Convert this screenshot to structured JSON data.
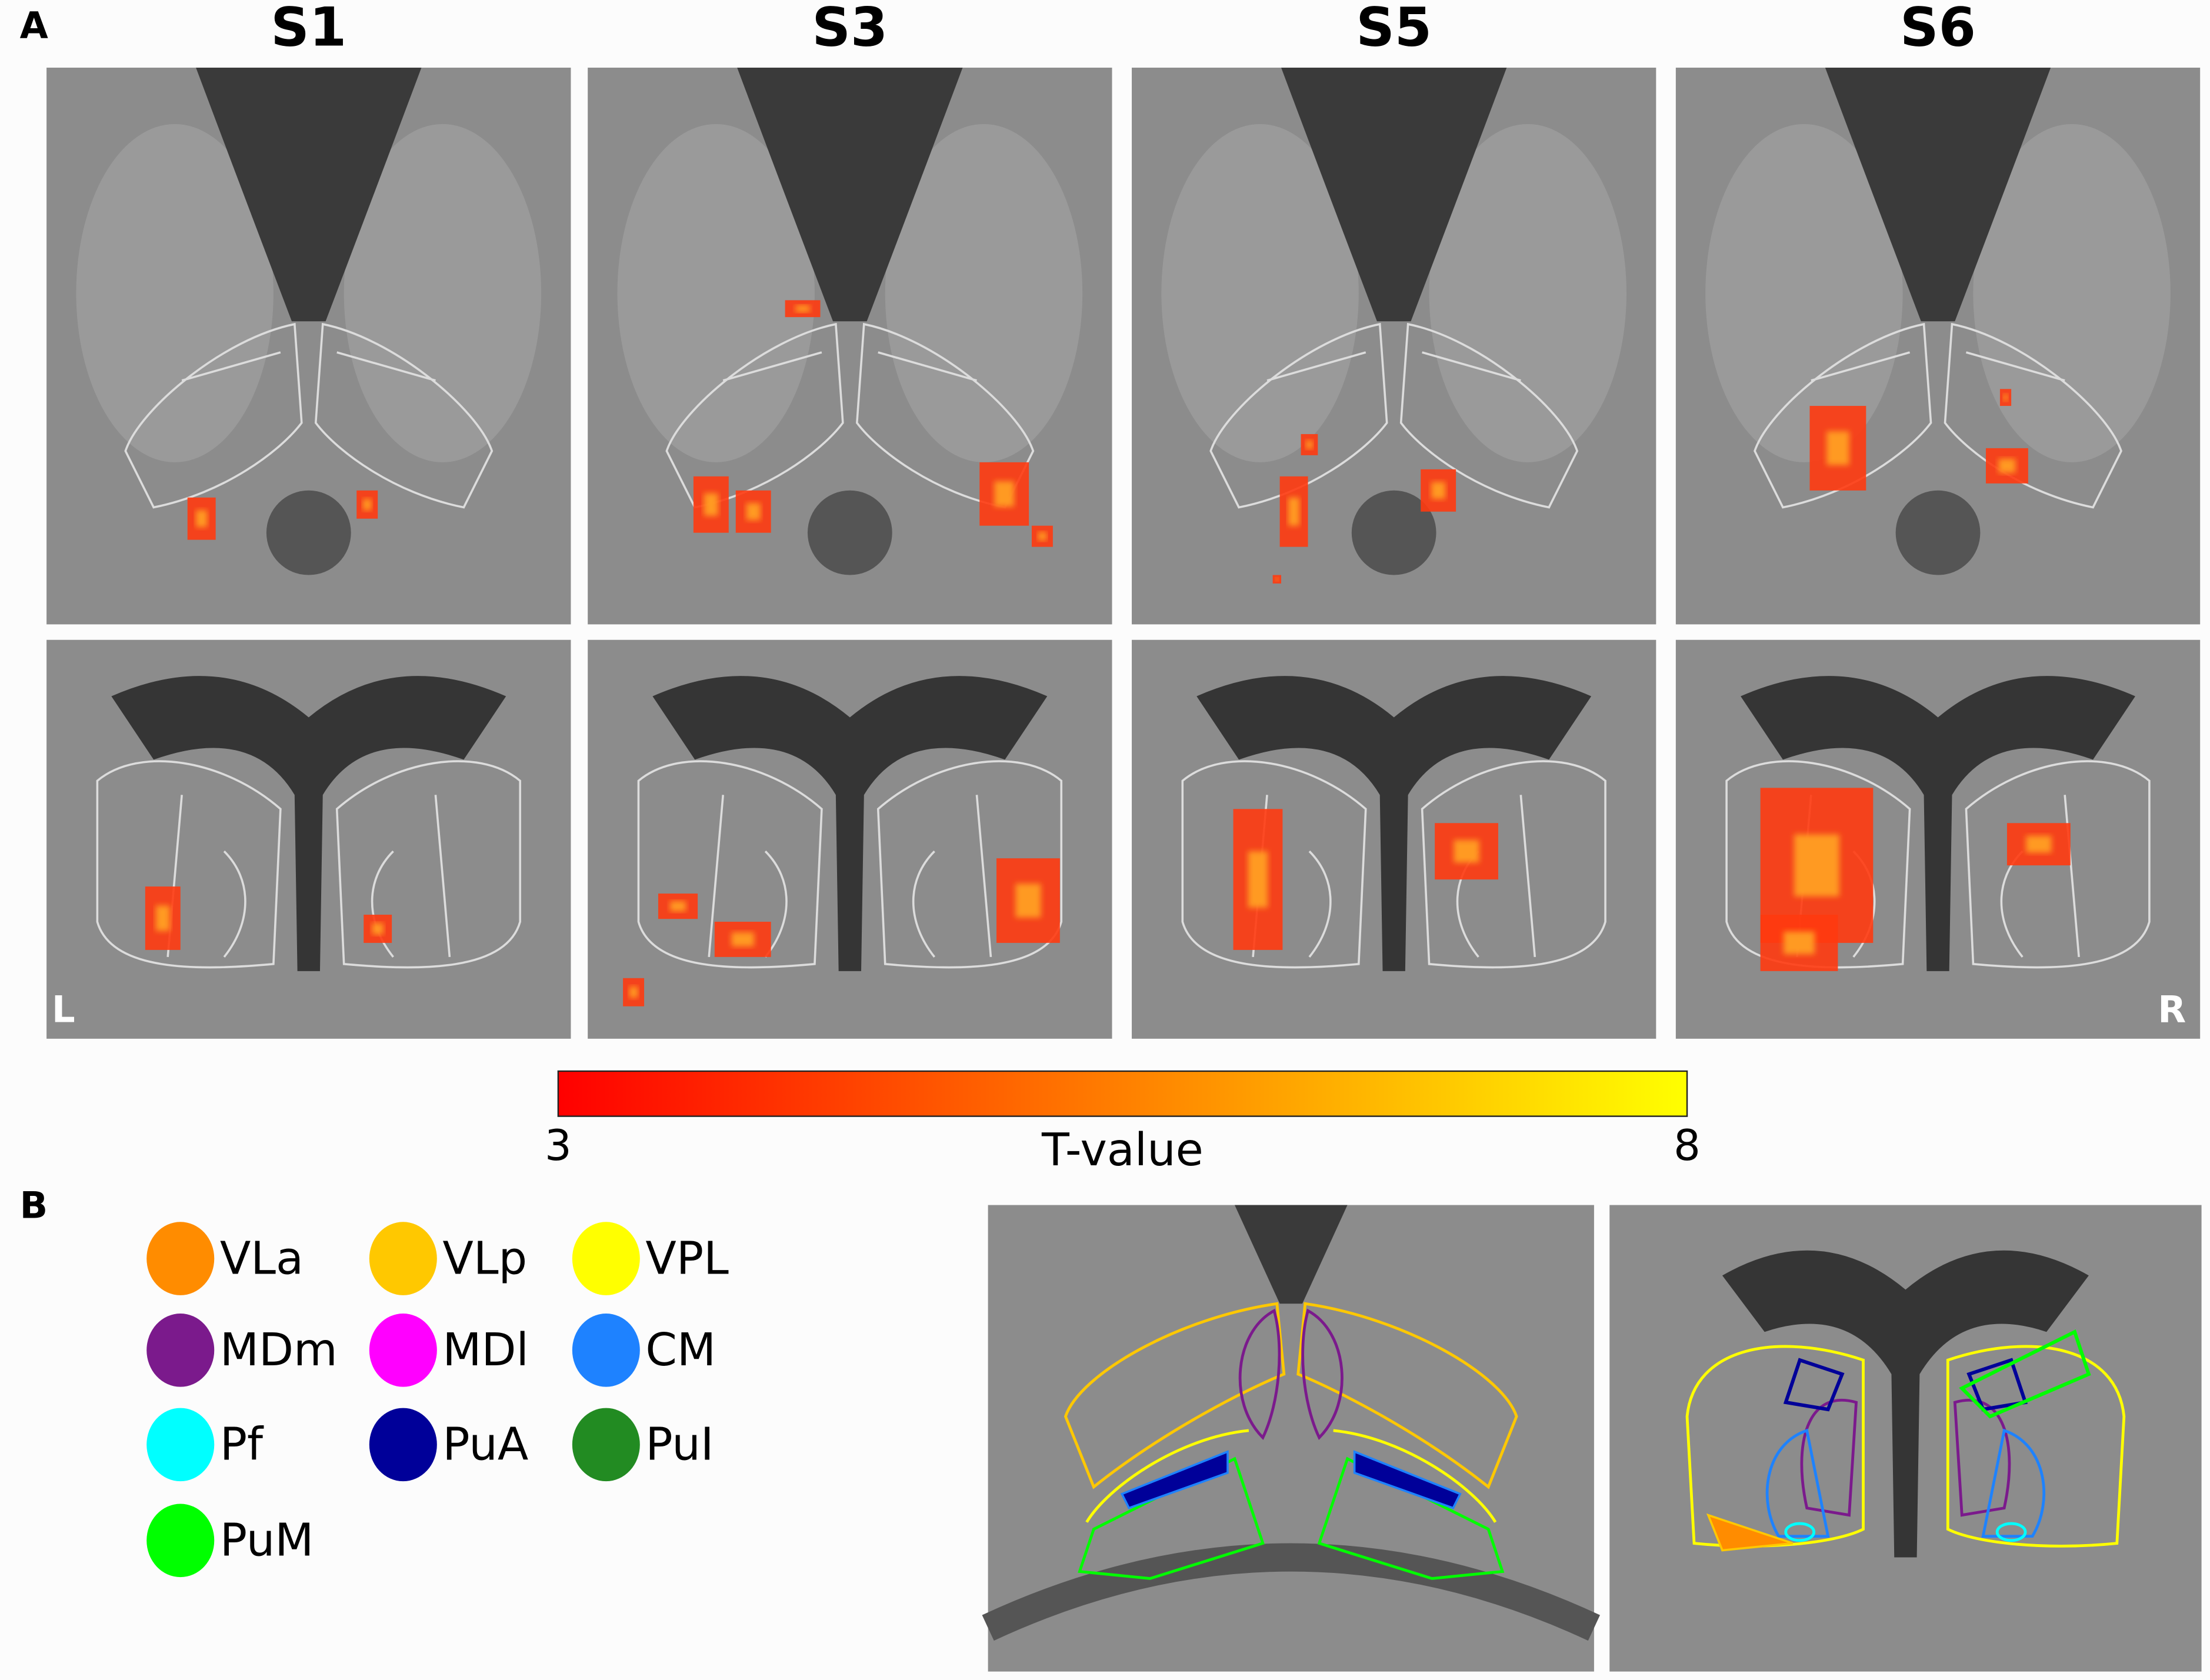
{
  "panel_a": {
    "label": "A",
    "subjects": [
      "S1",
      "S3",
      "S5",
      "S6"
    ],
    "left_label": "L",
    "right_label": "R",
    "colorbar": {
      "label": "T-value",
      "lim": [
        3,
        8
      ],
      "ticks": [
        3,
        8
      ],
      "colors": [
        "#ff0000",
        "#ffff00"
      ]
    }
  },
  "panel_b": {
    "label": "B",
    "legend": [
      {
        "name": "VLa",
        "color": "#ff8c00"
      },
      {
        "name": "VLp",
        "color": "#ffc800"
      },
      {
        "name": "VPL",
        "color": "#ffff00"
      },
      {
        "name": "MDm",
        "color": "#7b1a8c"
      },
      {
        "name": "MDl",
        "color": "#ff00ff"
      },
      {
        "name": "CM",
        "color": "#1e82ff"
      },
      {
        "name": "Pf",
        "color": "#00ffff"
      },
      {
        "name": "PuA",
        "color": "#000099"
      },
      {
        "name": "PuI",
        "color": "#228b22"
      },
      {
        "name": "PuM",
        "color": "#00ff00"
      }
    ]
  }
}
